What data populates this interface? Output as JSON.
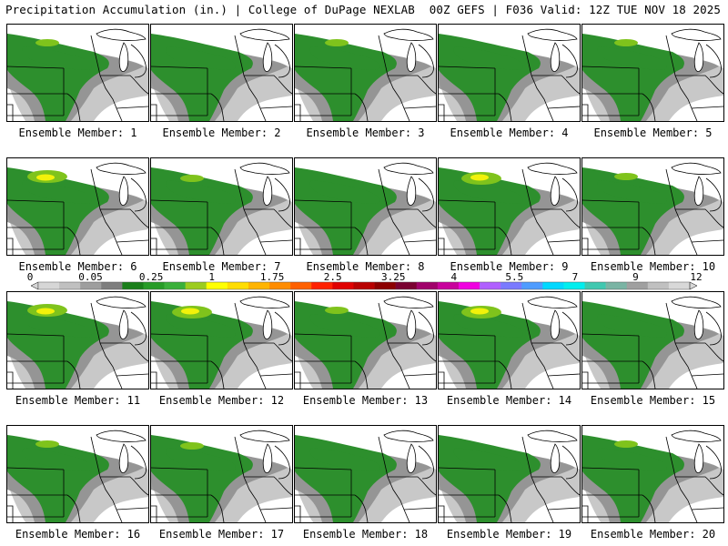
{
  "header": {
    "left": "Precipitation Accumulation (in.) | College of DuPage NEXLAB",
    "right": "00Z GEFS | F036 Valid: 12Z TUE NOV 18 2025"
  },
  "legend": {
    "ticks": [
      "0",
      "0.05",
      "0.25",
      "1",
      "1.75",
      "2.5",
      "3.25",
      "4",
      "5.5",
      "7",
      "9",
      "12"
    ],
    "colors": [
      "#d6d6d6",
      "#c0c0c0",
      "#9e9e9e",
      "#7e7e7e",
      "#1a7f1a",
      "#279c27",
      "#3ab03a",
      "#9ccc1e",
      "#ffff00",
      "#ffdd00",
      "#ffb400",
      "#ff8c00",
      "#ff6000",
      "#ff2000",
      "#e00000",
      "#b80000",
      "#8c0000",
      "#7a0030",
      "#a0006a",
      "#c8009c",
      "#f000e0",
      "#b060ff",
      "#7a7aff",
      "#4f9cff",
      "#00d8ff",
      "#00eeee",
      "#40c8b0",
      "#7ab4a4",
      "#a0a0a0",
      "#c0c0c0",
      "#d8d8d8"
    ]
  },
  "members": [
    {
      "label": "Ensemble Member: 1",
      "max": 1
    },
    {
      "label": "Ensemble Member: 2",
      "max": 0
    },
    {
      "label": "Ensemble Member: 3",
      "max": 1
    },
    {
      "label": "Ensemble Member: 4",
      "max": 0
    },
    {
      "label": "Ensemble Member: 5",
      "max": 1
    },
    {
      "label": "Ensemble Member: 6",
      "max": 2
    },
    {
      "label": "Ensemble Member: 7",
      "max": 1
    },
    {
      "label": "Ensemble Member: 8",
      "max": 0
    },
    {
      "label": "Ensemble Member: 9",
      "max": 2
    },
    {
      "label": "Ensemble Member: 10",
      "max": 1
    },
    {
      "label": "Ensemble Member: 11",
      "max": 2
    },
    {
      "label": "Ensemble Member: 12",
      "max": 2
    },
    {
      "label": "Ensemble Member: 13",
      "max": 1
    },
    {
      "label": "Ensemble Member: 14",
      "max": 2
    },
    {
      "label": "Ensemble Member: 15",
      "max": 0
    },
    {
      "label": "Ensemble Member: 16",
      "max": 1
    },
    {
      "label": "Ensemble Member: 17",
      "max": 1
    },
    {
      "label": "Ensemble Member: 18",
      "max": 0
    },
    {
      "label": "Ensemble Member: 19",
      "max": 0
    },
    {
      "label": "Ensemble Member: 20",
      "max": 1
    }
  ],
  "fill_colors": {
    "light_gray": "#c8c8c8",
    "gray": "#8c8c8c",
    "green": "#2d8f2d",
    "light_green": "#7fc31c",
    "yellow": "#f2f20a"
  }
}
